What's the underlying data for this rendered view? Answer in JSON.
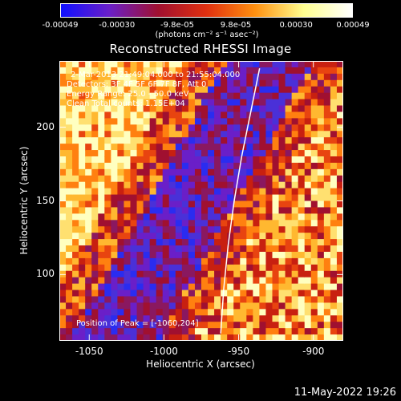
{
  "colorbar": {
    "ticks": [
      "-0.00049",
      "-0.00030",
      "-9.8e-05",
      "9.8e-05",
      "0.00030",
      "0.00049"
    ],
    "tick_values": [
      -0.00049,
      -0.0003,
      -9.8e-05,
      9.8e-05,
      0.0003,
      0.00049
    ],
    "units": "(photons cm⁻² s⁻¹ asec⁻²)",
    "colors": [
      "#1010ff",
      "#6a1fc8",
      "#a01030",
      "#e03010",
      "#ff9010",
      "#ffff90",
      "#ffffff"
    ]
  },
  "title": "Reconstructed RHESSI Image",
  "annotations": {
    "time": "2-Mar-2013 21:49:04.000 to 21:55:04.000",
    "detectors": "Detectors: 3F 4F 5F 6F 7F 8F, Att 0",
    "energy": "Energy Range: 25.0 - 50.0 keV",
    "algorithm": "Clean    Total counts: 1.15E+04",
    "peak": "Position of Peak = [-1060,204]"
  },
  "datestamp": "11-May-2022 19:26",
  "chart_data": {
    "type": "heatmap",
    "title": "Reconstructed RHESSI Image",
    "xlabel": "Heliocentric X (arcsec)",
    "ylabel": "Heliocentric Y (arcsec)",
    "xlim": [
      -1070,
      -880
    ],
    "ylim": [
      55,
      245
    ],
    "x_ticks": [
      -1050,
      -1000,
      -950,
      -900
    ],
    "y_ticks": [
      100,
      150,
      200
    ],
    "x_tick_labels": [
      "-1050",
      "-1000",
      "-950",
      "-900"
    ],
    "y_tick_labels": [
      "100",
      "150",
      "200"
    ],
    "colorbar_range": [
      -0.00049,
      0.00049
    ],
    "peak_position": [
      -1060,
      204
    ],
    "limb_curve": [
      [
        -962,
        60
      ],
      [
        -960,
        90
      ],
      [
        -957,
        120
      ],
      [
        -953,
        150
      ],
      [
        -948,
        180
      ],
      [
        -942,
        210
      ],
      [
        -936,
        240
      ]
    ]
  }
}
